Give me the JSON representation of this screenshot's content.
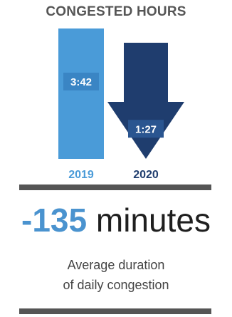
{
  "chart_data": {
    "type": "bar",
    "title": "CONGESTED HOURS",
    "categories": [
      "2019",
      "2020"
    ],
    "values": [
      222,
      87
    ],
    "value_labels": [
      "3:42",
      "1:27"
    ],
    "unit": "minutes",
    "ylim": [
      0,
      222
    ],
    "colors": [
      "#4a9bd8",
      "#1f3d6e"
    ],
    "category_label_colors": [
      "#4a9bd8",
      "#1f3d6e"
    ],
    "styles": [
      "bar",
      "down-arrow"
    ]
  },
  "summary": {
    "change_value": "-135",
    "change_unit": "minutes",
    "caption_line1": "Average duration",
    "caption_line2": "of daily congestion"
  },
  "colors": {
    "accent": "#4a93cf",
    "divider": "#555555",
    "title": "#555555"
  }
}
